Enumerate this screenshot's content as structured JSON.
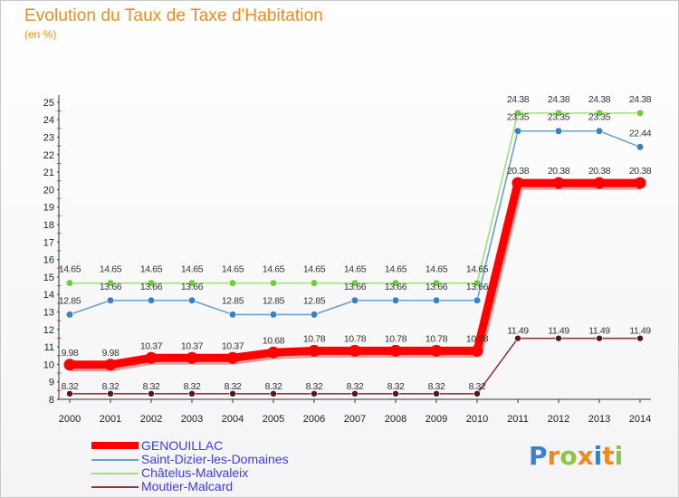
{
  "header": {
    "title": "Evolution du Taux de Taxe d'Habitation",
    "subtitle": "(en %)"
  },
  "brand": {
    "text": "Proxiti"
  },
  "chart_data": {
    "type": "line",
    "title": "Evolution du Taux de Taxe d'Habitation",
    "ylabel": "(en %)",
    "xlabel": "",
    "x": [
      2000,
      2001,
      2002,
      2003,
      2004,
      2005,
      2006,
      2007,
      2008,
      2009,
      2010,
      2011,
      2012,
      2013,
      2014
    ],
    "ylim": [
      8,
      25
    ],
    "yticks": [
      8,
      9,
      10,
      11,
      12,
      13,
      14,
      15,
      16,
      17,
      18,
      19,
      20,
      21,
      22,
      23,
      24,
      25
    ],
    "grid": false,
    "legend": "bottom-left",
    "series": [
      {
        "name": "GENOUILLAC",
        "color": "#ff0000",
        "marker": "#ff0000",
        "values": [
          9.98,
          9.98,
          10.37,
          10.37,
          10.37,
          10.68,
          10.78,
          10.78,
          10.78,
          10.78,
          10.78,
          20.38,
          20.38,
          20.38,
          20.38
        ],
        "labels": [
          "9.98",
          "9.98",
          "10.37",
          "10.37",
          "10.37",
          "10.68",
          "10.78",
          "10.78",
          "10.78",
          "10.78",
          "10.78",
          "20.38",
          "20.38",
          "20.38",
          "20.38"
        ]
      },
      {
        "name": "Saint-Dizier-les-Domaines",
        "color": "#6aa0cf",
        "marker": "#3c7fc2",
        "values": [
          12.85,
          13.66,
          13.66,
          13.66,
          12.85,
          12.85,
          12.85,
          13.66,
          13.66,
          13.66,
          13.66,
          23.35,
          23.35,
          23.35,
          22.44
        ],
        "labels": [
          "12.85",
          "13.66",
          "13.66",
          "13.66",
          "12.85",
          "12.85",
          "12.85",
          "13.66",
          "13.66",
          "13.66",
          "13.66",
          "23.35",
          "23.35",
          "23.35",
          "22.44"
        ]
      },
      {
        "name": "Châtelus-Malvaleix",
        "color": "#9ee27a",
        "marker": "#6ccf3a",
        "values": [
          14.65,
          14.65,
          14.65,
          14.65,
          14.65,
          14.65,
          14.65,
          14.65,
          14.65,
          14.65,
          14.65,
          24.38,
          24.38,
          24.38,
          24.38
        ],
        "labels": [
          "14.65",
          "14.65",
          "14.65",
          "14.65",
          "14.65",
          "14.65",
          "14.65",
          "14.65",
          "14.65",
          "14.65",
          "14.65",
          "24.38",
          "24.38",
          "24.38",
          "24.38"
        ]
      },
      {
        "name": "Moutier-Malcard",
        "color": "#8a3a3a",
        "marker": "#5a1414",
        "values": [
          8.32,
          8.32,
          8.32,
          8.32,
          8.32,
          8.32,
          8.32,
          8.32,
          8.32,
          8.32,
          8.32,
          11.49,
          11.49,
          11.49,
          11.49
        ],
        "labels": [
          "8.32",
          "8.32",
          "8.32",
          "8.32",
          "8.32",
          "8.32",
          "8.32",
          "8.32",
          "8.32",
          "8.32",
          "8.32",
          "11.49",
          "11.49",
          "11.49",
          "11.49"
        ]
      }
    ]
  }
}
